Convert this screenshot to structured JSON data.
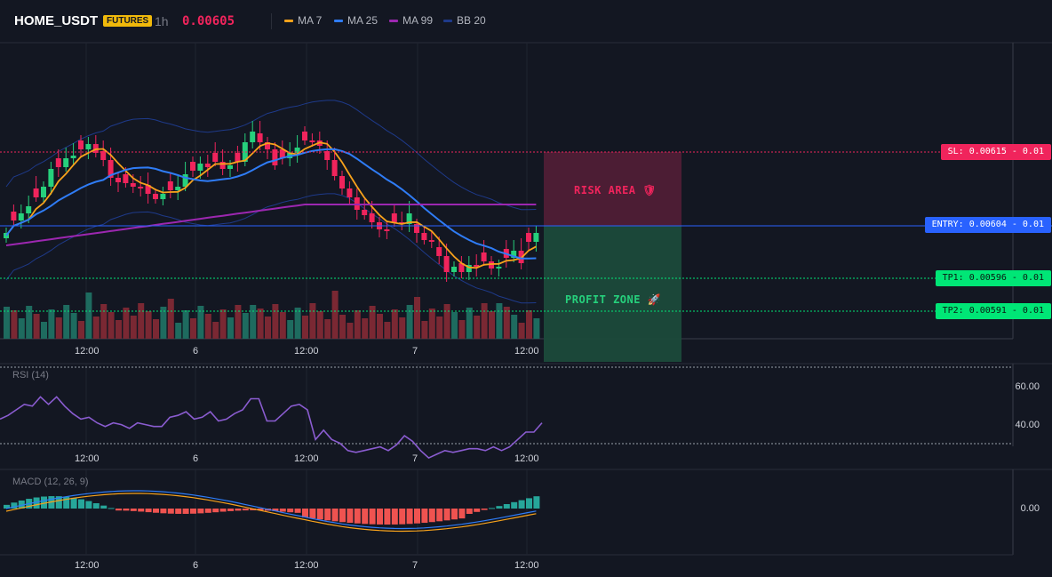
{
  "header": {
    "symbol": "HOME_USDT",
    "badge": "FUTURES",
    "timeframe": "1h",
    "price": "0.00605",
    "legend": [
      {
        "label": "MA 7",
        "color": "#f7a21b"
      },
      {
        "label": "MA 25",
        "color": "#2f7cf6"
      },
      {
        "label": "MA 99",
        "color": "#9c27b0"
      },
      {
        "label": "BB 20",
        "color": "#1e3a8a"
      }
    ]
  },
  "levels": {
    "sl": "SL: 0.00615 - 0.01",
    "entry": "ENTRY: 0.00604 - 0.01",
    "tp1": "TP1: 0.00596 - 0.01",
    "tp2": "TP2: 0.00591 - 0.01"
  },
  "zones": {
    "risk": "RISK AREA 🛡",
    "profit": "PROFIT ZONE 🚀"
  },
  "time_axis": [
    "12:00",
    "6",
    "12:00",
    "7",
    "12:00"
  ],
  "rsi": {
    "label": "RSI (14)",
    "ticks": [
      "60.00",
      "40.00"
    ],
    "values": [
      55,
      57,
      60,
      63,
      62,
      67,
      63,
      67,
      62,
      58,
      55,
      56,
      53,
      51,
      53,
      52,
      50,
      53,
      52,
      51,
      51,
      56,
      57,
      59,
      55,
      56,
      59,
      54,
      55,
      58,
      60,
      66,
      66,
      54,
      54,
      58,
      62,
      63,
      60,
      44,
      49,
      44,
      42,
      38,
      37,
      38,
      39,
      40,
      38,
      41,
      46,
      43,
      38,
      34,
      36,
      38,
      37,
      38,
      39,
      39,
      38,
      40,
      38,
      40,
      44,
      48,
      48,
      53
    ]
  },
  "macd": {
    "label": "MACD (12, 26, 9)",
    "tick": "0.00"
  },
  "colors": {
    "up": "#26d07c",
    "down": "#f0245c",
    "vol_up": "#1e6b5f",
    "vol_down": "#7a2833",
    "risk_zone": "#5a1f3a",
    "profit_zone": "#1a4a3c",
    "entry": "#2962ff",
    "sl": "#f0245c",
    "tp": "#00e676"
  }
}
